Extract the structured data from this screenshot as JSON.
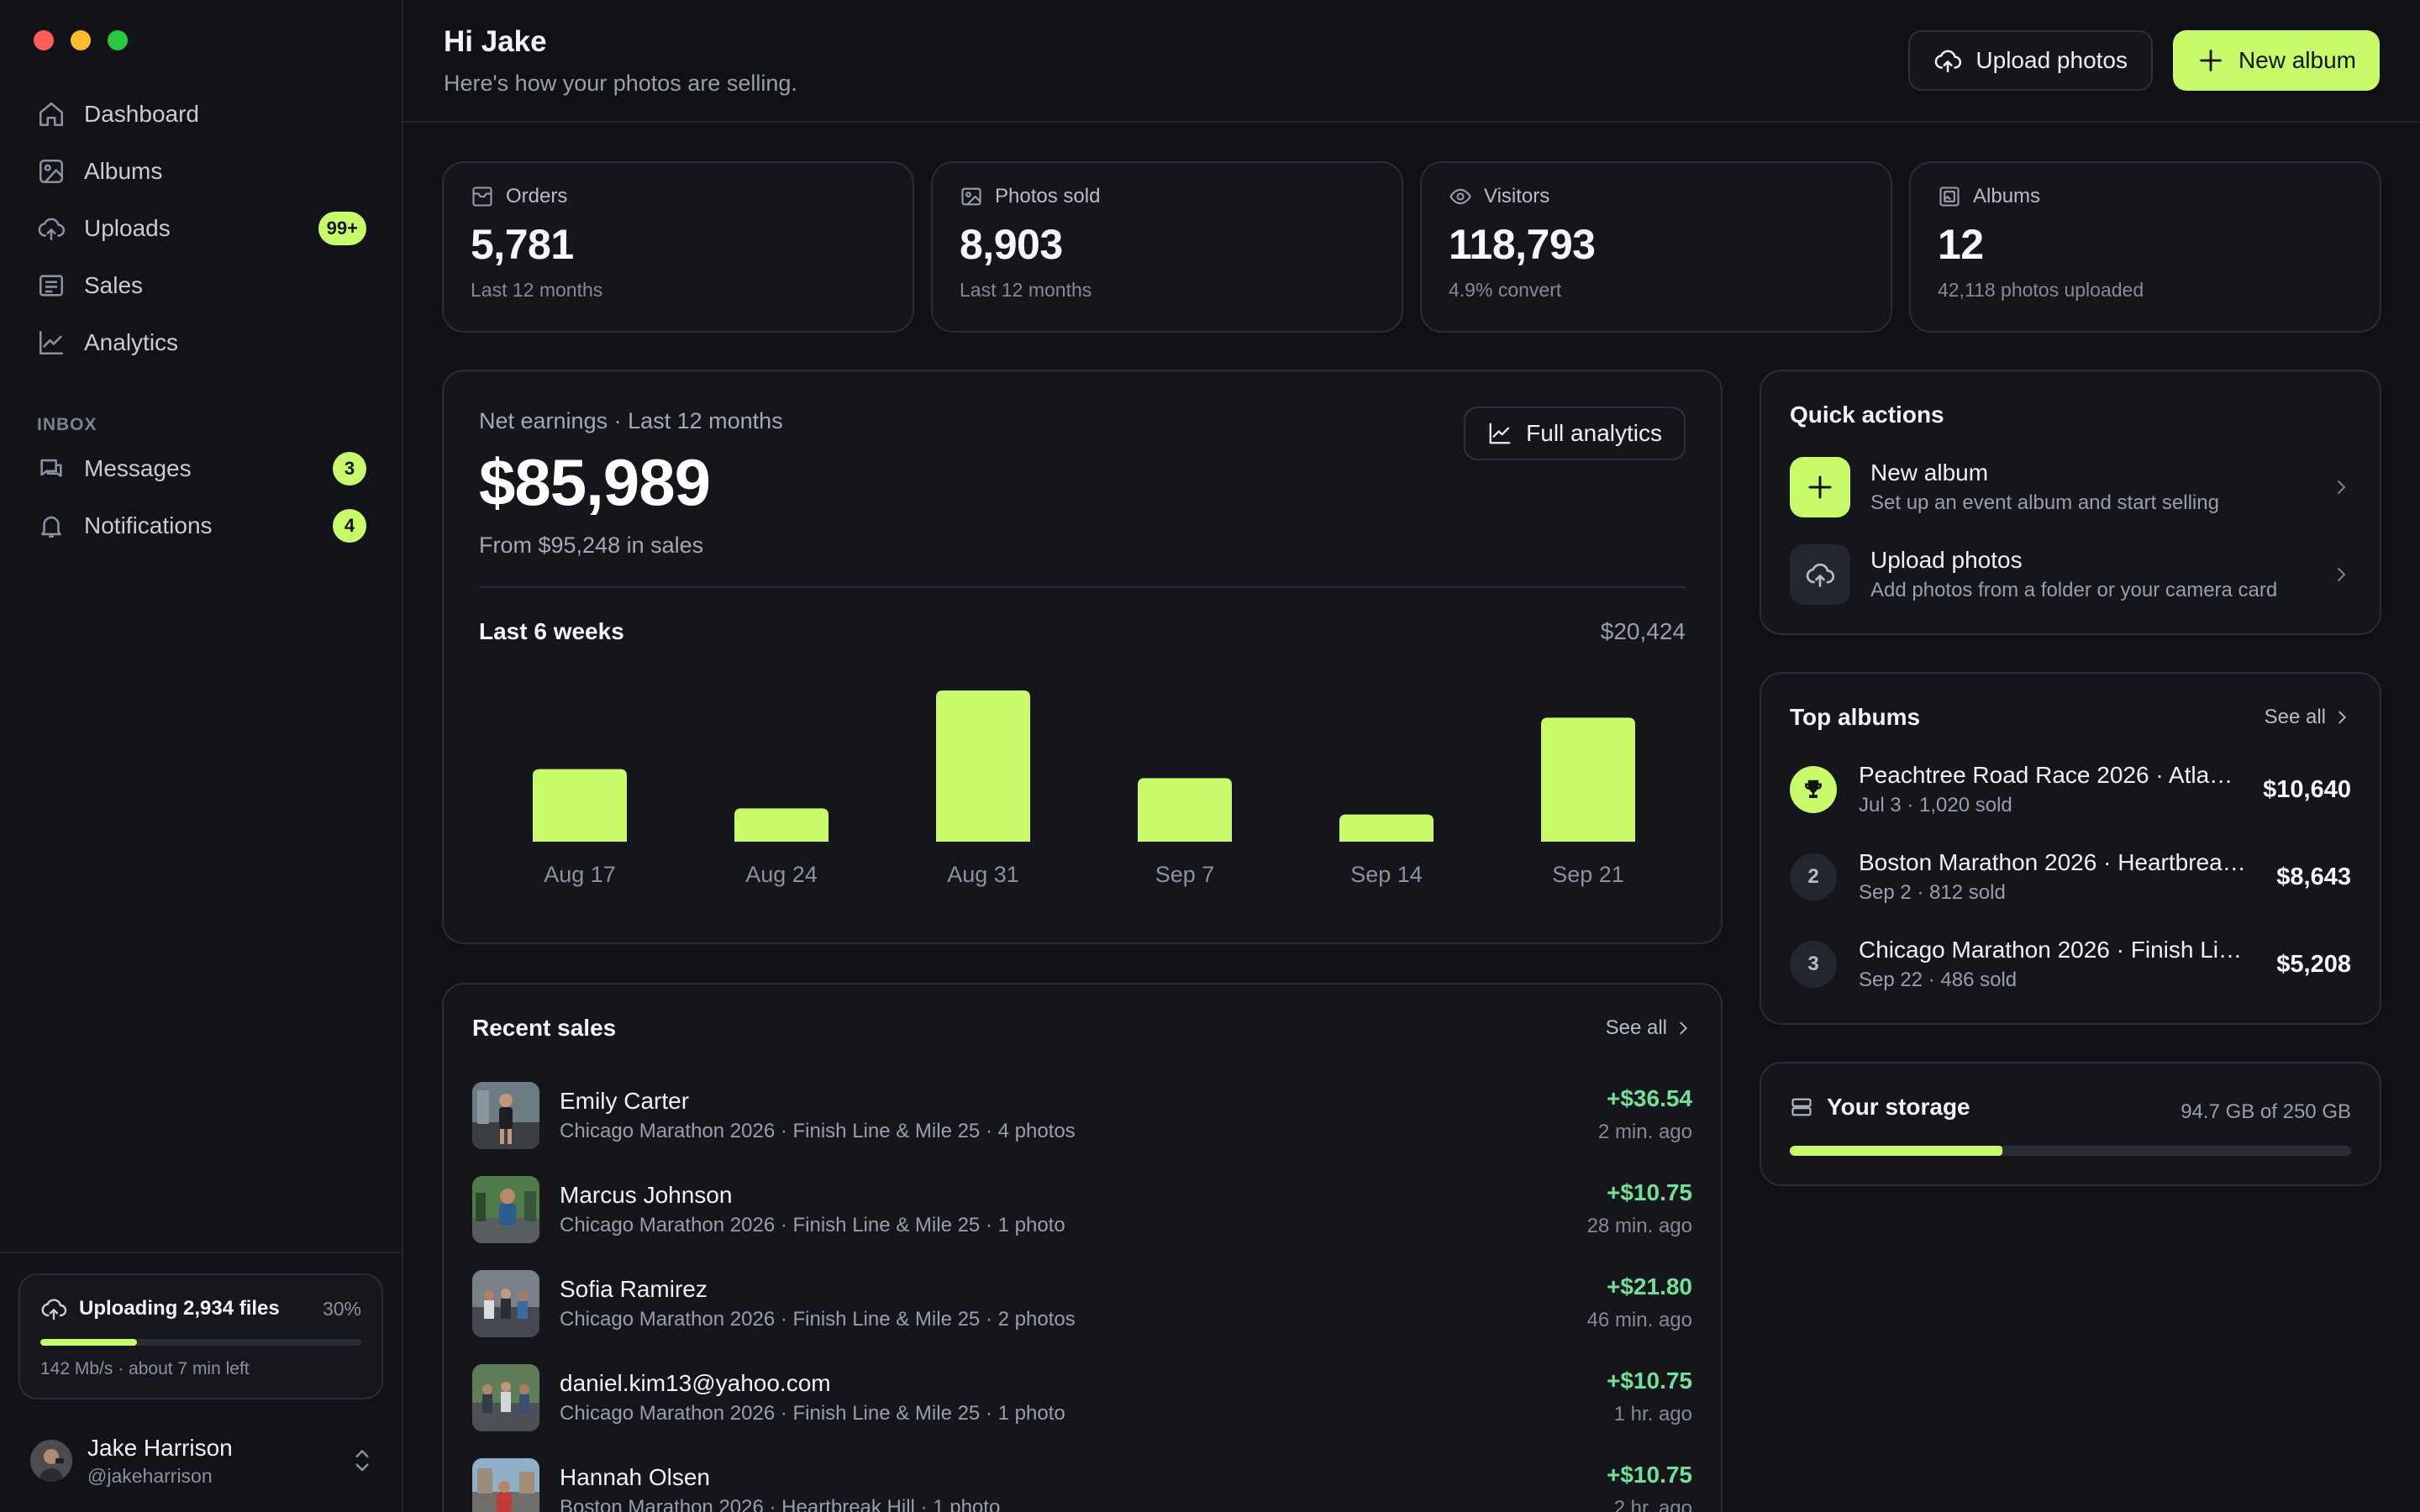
{
  "sidebar": {
    "nav": [
      {
        "label": "Dashboard",
        "icon": "home-icon"
      },
      {
        "label": "Albums",
        "icon": "image-icon"
      },
      {
        "label": "Uploads",
        "icon": "cloud-upload-icon",
        "badge": "99+"
      },
      {
        "label": "Sales",
        "icon": "receipt-icon"
      },
      {
        "label": "Analytics",
        "icon": "line-chart-icon"
      }
    ],
    "inbox_label": "INBOX",
    "inbox": [
      {
        "label": "Messages",
        "icon": "chat-icon",
        "badge": "3"
      },
      {
        "label": "Notifications",
        "icon": "bell-icon",
        "badge": "4"
      }
    ],
    "upload": {
      "title": "Uploading 2,934 files",
      "percent_label": "30%",
      "progress": 0.3,
      "meta": "142 Mb/s · about 7 min left"
    },
    "user": {
      "name": "Jake Harrison",
      "handle": "@jakeharrison"
    }
  },
  "header": {
    "greeting": "Hi Jake",
    "subtitle": "Here's how your photos are selling.",
    "upload_button": "Upload photos",
    "new_album_button": "New album"
  },
  "stats": [
    {
      "label": "Orders",
      "icon": "inbox-icon",
      "value": "5,781",
      "sub": "Last 12 months"
    },
    {
      "label": "Photos sold",
      "icon": "image-icon",
      "value": "8,903",
      "sub": "Last 12 months"
    },
    {
      "label": "Visitors",
      "icon": "eye-icon",
      "value": "118,793",
      "sub": "4.9% convert"
    },
    {
      "label": "Albums",
      "icon": "album-icon",
      "value": "12",
      "sub": "42,118 photos uploaded"
    }
  ],
  "earnings": {
    "label": "Net earnings · Last 12 months",
    "amount": "$85,989",
    "from": "From $95,248 in sales",
    "full_button": "Full analytics",
    "period_label": "Last 6 weeks",
    "period_total": "$20,424"
  },
  "chart_data": {
    "type": "bar",
    "categories": [
      "Aug 17",
      "Aug 24",
      "Aug 31",
      "Sep 7",
      "Sep 14",
      "Sep 21"
    ],
    "values": [
      0.48,
      0.22,
      1.0,
      0.42,
      0.18,
      0.82
    ],
    "total": "$20,424",
    "title": "Last 6 weeks",
    "xlabel": "",
    "ylabel": "",
    "grid": false,
    "color": "#c8fb6a"
  },
  "recent_sales": {
    "title": "Recent sales",
    "see_all": "See all",
    "rows": [
      {
        "name": "Emily Carter",
        "desc": "Chicago Marathon 2026 · Finish Line & Mile 25 · 4 photos",
        "amount": "+$36.54",
        "time": "2 min. ago"
      },
      {
        "name": "Marcus Johnson",
        "desc": "Chicago Marathon 2026 · Finish Line & Mile 25 · 1 photo",
        "amount": "+$10.75",
        "time": "28 min. ago"
      },
      {
        "name": "Sofia Ramirez",
        "desc": "Chicago Marathon 2026 · Finish Line & Mile 25 · 2 photos",
        "amount": "+$21.80",
        "time": "46 min. ago"
      },
      {
        "name": "daniel.kim13@yahoo.com",
        "desc": "Chicago Marathon 2026 · Finish Line & Mile 25 · 1 photo",
        "amount": "+$10.75",
        "time": "1 hr. ago"
      },
      {
        "name": "Hannah Olsen",
        "desc": "Boston Marathon 2026 · Heartbreak Hill · 1 photo",
        "amount": "+$10.75",
        "time": "2 hr. ago"
      }
    ]
  },
  "quick_actions": {
    "title": "Quick actions",
    "items": [
      {
        "title": "New album",
        "desc": "Set up an event album and start selling",
        "icon": "plus-icon"
      },
      {
        "title": "Upload photos",
        "desc": "Add photos from a folder or your camera card",
        "icon": "cloud-upload-icon"
      }
    ]
  },
  "top_albums": {
    "title": "Top albums",
    "see_all": "See all",
    "rows": [
      {
        "rank": "",
        "icon": "trophy-icon",
        "title": "Peachtree Road Race 2026 · Atla…",
        "desc": "Jul 3 · 1,020 sold",
        "amount": "$10,640"
      },
      {
        "rank": "2",
        "title": "Boston Marathon 2026 · Heartbrea…",
        "desc": "Sep 2 · 812 sold",
        "amount": "$8,643"
      },
      {
        "rank": "3",
        "title": "Chicago Marathon 2026 · Finish Li…",
        "desc": "Sep 22 · 486 sold",
        "amount": "$5,208"
      }
    ]
  },
  "storage": {
    "title": "Your storage",
    "used": "94.7 GB of 250 GB",
    "fraction": 0.379
  }
}
